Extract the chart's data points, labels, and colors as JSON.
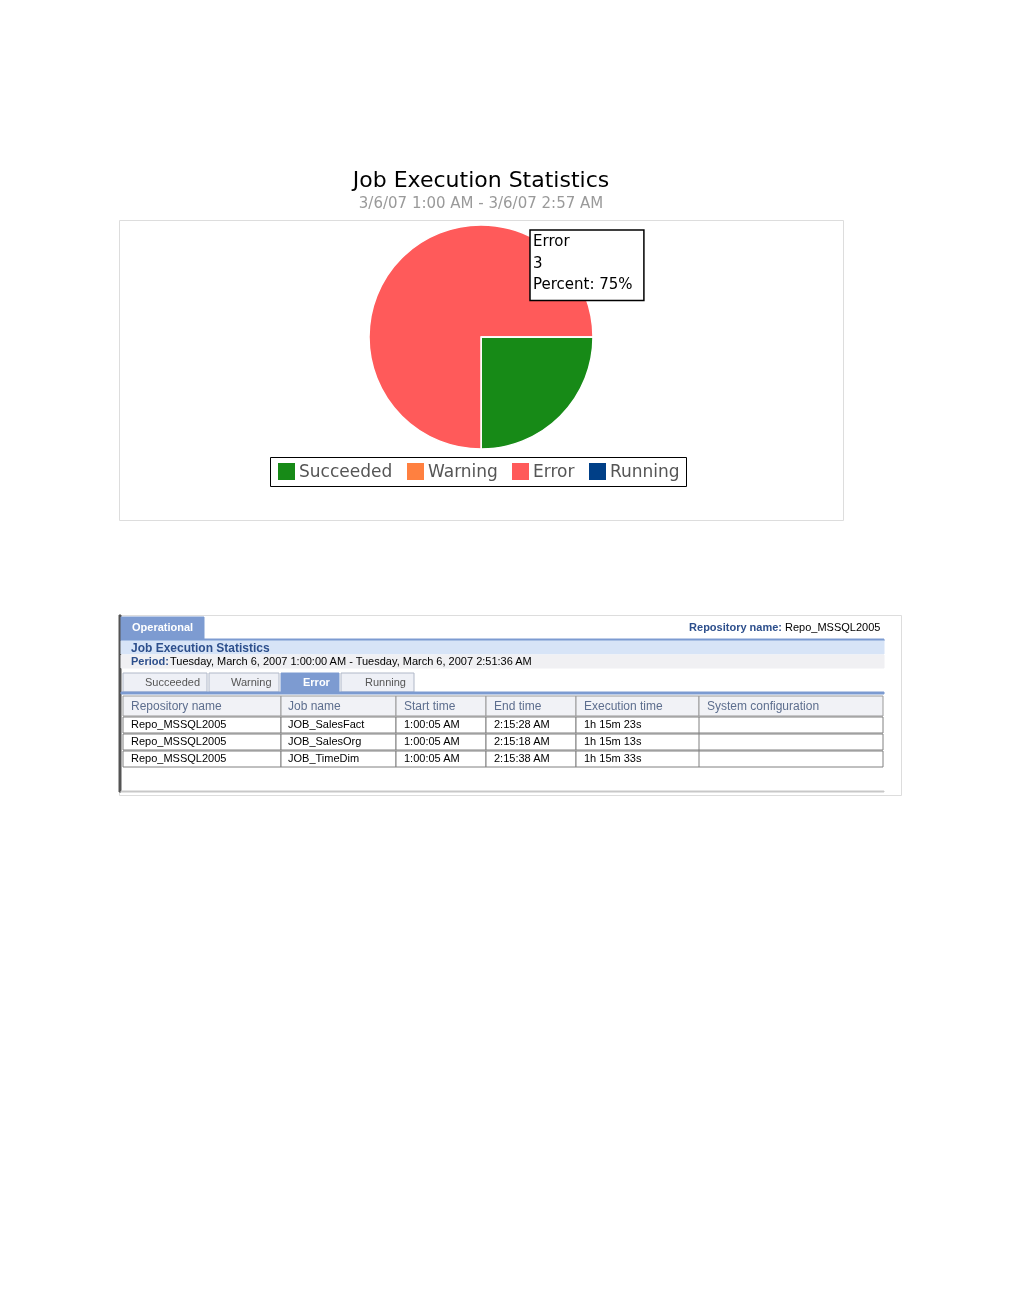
{
  "chart_data": [
    {
      "type": "pie",
      "title": "Job Execution Statistics",
      "subtitle": "3/6/07 1:00 AM - 3/6/07 2:57 AM",
      "categories": [
        "Succeeded",
        "Warning",
        "Error",
        "Running"
      ],
      "values": [
        25,
        0,
        75,
        0
      ],
      "colors": [
        "#178a17",
        "#ff8040",
        "#ff5a5a",
        "#003f87"
      ],
      "legend": "bottom",
      "annotations": [
        "Error\n3\nPercent:  75%"
      ]
    },
    {
      "type": "other",
      "title": "Job Execution Statistics",
      "annotations": [
        "Operational",
        "Repository name:",
        "Repo_MSSQL2005",
        "Period:",
        "Tuesday, March 6, 2007 1:00:00 AM - Tuesday, March 6, 2007 2:51:36 AM",
        "Succeeded",
        "Warning",
        "Error",
        "Running",
        "Repository name",
        "Job name",
        "Start time",
        "End time",
        "Execution time",
        "System configuration",
        "Repo_MSSQL2005",
        "JOB_SalesFact",
        "1:00:05 AM",
        "2:15:28 AM",
        "1h 15m 23s",
        "Repo_MSSQL2005",
        "JOB_SalesOrg",
        "1:00:05 AM",
        "2:15:18 AM",
        "1h 15m 13s",
        "Repo_MSSQL2005",
        "JOB_TimeDim",
        "1:00:05 AM",
        "2:15:38 AM",
        "1h 15m 33s"
      ]
    }
  ]
}
